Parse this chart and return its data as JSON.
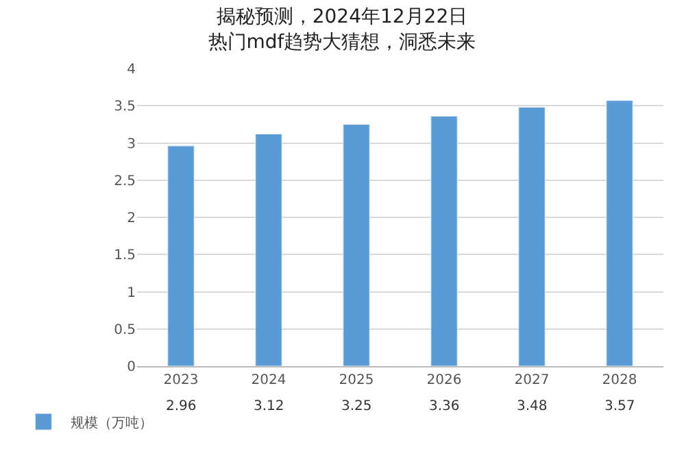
{
  "chart_data": {
    "type": "bar",
    "title": "揭秘预测，2024年12月22日热门mdf趋势大猜想，洞悉未来",
    "categories": [
      "2023",
      "2024",
      "2025",
      "2026",
      "2027",
      "2028"
    ],
    "series": [
      {
        "name": "规模（万吨）",
        "color": "#5b9bd5",
        "values": [
          2.96,
          3.12,
          3.25,
          3.36,
          3.48,
          3.57
        ]
      }
    ],
    "ylim": [
      0,
      4
    ],
    "yticks": [
      0,
      0.5,
      1,
      1.5,
      2,
      2.5,
      3,
      3.5,
      4
    ],
    "grid": "y",
    "legend": "bottom left",
    "data_labels": true
  }
}
